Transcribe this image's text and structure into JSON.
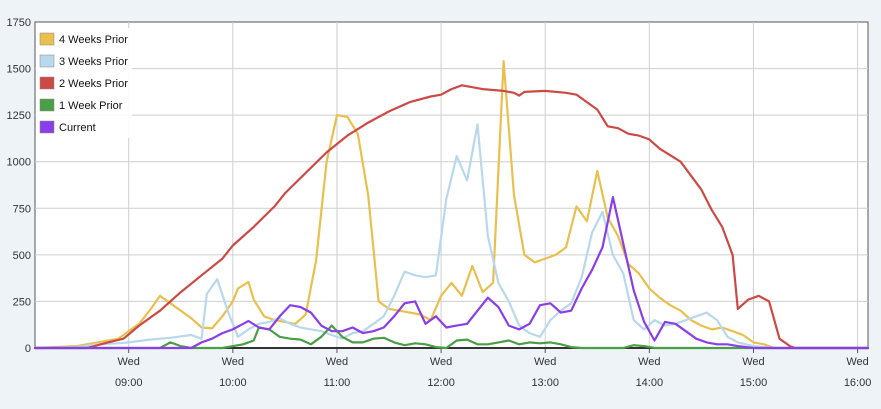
{
  "chart_data": {
    "type": "line",
    "title": "",
    "xlabel": "",
    "ylabel": "",
    "ylim": [
      0,
      1750
    ],
    "y_ticks": [
      0,
      250,
      500,
      750,
      1000,
      1250,
      1500,
      1750
    ],
    "x_ticks": [
      {
        "day": "Wed",
        "time": "09:00",
        "t": 9
      },
      {
        "day": "Wed",
        "time": "10:00",
        "t": 10
      },
      {
        "day": "Wed",
        "time": "11:00",
        "t": 11
      },
      {
        "day": "Wed",
        "time": "12:00",
        "t": 12
      },
      {
        "day": "Wed",
        "time": "13:00",
        "t": 13
      },
      {
        "day": "Wed",
        "time": "14:00",
        "t": 14
      },
      {
        "day": "Wed",
        "time": "15:00",
        "t": 15
      },
      {
        "day": "Wed",
        "time": "16:00",
        "t": 16
      }
    ],
    "xlim_hours": [
      8.1,
      16.1
    ],
    "grid": true,
    "legend_position": "top-left",
    "series": [
      {
        "name": "4 Weeks Prior",
        "color": "#e9c04e",
        "points": [
          [
            8.1,
            0
          ],
          [
            8.5,
            10
          ],
          [
            8.7,
            30
          ],
          [
            8.9,
            50
          ],
          [
            9.0,
            90
          ],
          [
            9.1,
            130
          ],
          [
            9.2,
            200
          ],
          [
            9.3,
            280
          ],
          [
            9.4,
            240
          ],
          [
            9.5,
            200
          ],
          [
            9.6,
            160
          ],
          [
            9.7,
            110
          ],
          [
            9.8,
            105
          ],
          [
            9.9,
            170
          ],
          [
            10.0,
            250
          ],
          [
            10.05,
            320
          ],
          [
            10.15,
            355
          ],
          [
            10.2,
            260
          ],
          [
            10.3,
            170
          ],
          [
            10.4,
            150
          ],
          [
            10.5,
            140
          ],
          [
            10.6,
            130
          ],
          [
            10.7,
            180
          ],
          [
            10.8,
            470
          ],
          [
            10.9,
            1000
          ],
          [
            11.0,
            1250
          ],
          [
            11.1,
            1240
          ],
          [
            11.2,
            1150
          ],
          [
            11.3,
            820
          ],
          [
            11.4,
            250
          ],
          [
            11.5,
            210
          ],
          [
            11.6,
            200
          ],
          [
            11.7,
            190
          ],
          [
            11.8,
            180
          ],
          [
            11.9,
            150
          ],
          [
            12.0,
            280
          ],
          [
            12.1,
            350
          ],
          [
            12.2,
            280
          ],
          [
            12.3,
            440
          ],
          [
            12.4,
            300
          ],
          [
            12.5,
            350
          ],
          [
            12.6,
            1540
          ],
          [
            12.7,
            820
          ],
          [
            12.8,
            500
          ],
          [
            12.9,
            460
          ],
          [
            13.0,
            480
          ],
          [
            13.1,
            500
          ],
          [
            13.2,
            540
          ],
          [
            13.3,
            760
          ],
          [
            13.4,
            680
          ],
          [
            13.5,
            950
          ],
          [
            13.6,
            700
          ],
          [
            13.7,
            600
          ],
          [
            13.8,
            450
          ],
          [
            13.9,
            400
          ],
          [
            14.0,
            320
          ],
          [
            14.1,
            270
          ],
          [
            14.2,
            230
          ],
          [
            14.3,
            200
          ],
          [
            14.4,
            150
          ],
          [
            14.5,
            120
          ],
          [
            14.6,
            100
          ],
          [
            14.7,
            110
          ],
          [
            14.8,
            90
          ],
          [
            14.9,
            70
          ],
          [
            15.0,
            30
          ],
          [
            15.1,
            20
          ],
          [
            15.2,
            0
          ],
          [
            16.1,
            0
          ]
        ]
      },
      {
        "name": "3 Weeks Prior",
        "color": "#b8d8ee",
        "points": [
          [
            8.1,
            0
          ],
          [
            8.5,
            5
          ],
          [
            8.7,
            20
          ],
          [
            8.9,
            25
          ],
          [
            9.0,
            30
          ],
          [
            9.2,
            45
          ],
          [
            9.4,
            55
          ],
          [
            9.6,
            70
          ],
          [
            9.7,
            50
          ],
          [
            9.75,
            290
          ],
          [
            9.85,
            370
          ],
          [
            9.95,
            200
          ],
          [
            10.05,
            60
          ],
          [
            10.15,
            100
          ],
          [
            10.25,
            130
          ],
          [
            10.35,
            140
          ],
          [
            10.45,
            160
          ],
          [
            10.55,
            130
          ],
          [
            10.65,
            110
          ],
          [
            10.75,
            100
          ],
          [
            10.85,
            90
          ],
          [
            10.95,
            70
          ],
          [
            11.05,
            50
          ],
          [
            11.15,
            80
          ],
          [
            11.25,
            90
          ],
          [
            11.35,
            130
          ],
          [
            11.45,
            170
          ],
          [
            11.55,
            280
          ],
          [
            11.65,
            410
          ],
          [
            11.75,
            390
          ],
          [
            11.85,
            380
          ],
          [
            11.95,
            390
          ],
          [
            12.05,
            800
          ],
          [
            12.15,
            1030
          ],
          [
            12.25,
            900
          ],
          [
            12.35,
            1200
          ],
          [
            12.45,
            600
          ],
          [
            12.55,
            350
          ],
          [
            12.65,
            250
          ],
          [
            12.75,
            120
          ],
          [
            12.85,
            80
          ],
          [
            12.95,
            60
          ],
          [
            13.05,
            150
          ],
          [
            13.15,
            200
          ],
          [
            13.25,
            240
          ],
          [
            13.35,
            380
          ],
          [
            13.45,
            620
          ],
          [
            13.55,
            730
          ],
          [
            13.65,
            500
          ],
          [
            13.75,
            400
          ],
          [
            13.85,
            150
          ],
          [
            13.95,
            100
          ],
          [
            14.05,
            150
          ],
          [
            14.15,
            120
          ],
          [
            14.25,
            130
          ],
          [
            14.35,
            150
          ],
          [
            14.45,
            170
          ],
          [
            14.55,
            190
          ],
          [
            14.65,
            150
          ],
          [
            14.75,
            60
          ],
          [
            14.85,
            30
          ],
          [
            15.0,
            10
          ],
          [
            15.2,
            0
          ],
          [
            16.1,
            0
          ]
        ]
      },
      {
        "name": "2 Weeks Prior",
        "color": "#cc4a45",
        "points": [
          [
            8.1,
            0
          ],
          [
            8.6,
            0
          ],
          [
            8.8,
            30
          ],
          [
            8.95,
            50
          ],
          [
            9.1,
            120
          ],
          [
            9.3,
            200
          ],
          [
            9.5,
            300
          ],
          [
            9.7,
            390
          ],
          [
            9.9,
            480
          ],
          [
            10.0,
            550
          ],
          [
            10.2,
            650
          ],
          [
            10.4,
            760
          ],
          [
            10.5,
            830
          ],
          [
            10.7,
            940
          ],
          [
            10.9,
            1050
          ],
          [
            11.1,
            1140
          ],
          [
            11.3,
            1210
          ],
          [
            11.5,
            1270
          ],
          [
            11.7,
            1320
          ],
          [
            11.9,
            1350
          ],
          [
            12.0,
            1360
          ],
          [
            12.1,
            1390
          ],
          [
            12.2,
            1410
          ],
          [
            12.4,
            1390
          ],
          [
            12.6,
            1380
          ],
          [
            12.7,
            1370
          ],
          [
            12.75,
            1355
          ],
          [
            12.8,
            1375
          ],
          [
            13.0,
            1380
          ],
          [
            13.2,
            1370
          ],
          [
            13.3,
            1360
          ],
          [
            13.4,
            1320
          ],
          [
            13.5,
            1280
          ],
          [
            13.6,
            1190
          ],
          [
            13.7,
            1180
          ],
          [
            13.8,
            1150
          ],
          [
            13.9,
            1140
          ],
          [
            14.0,
            1120
          ],
          [
            14.1,
            1070
          ],
          [
            14.3,
            1000
          ],
          [
            14.5,
            850
          ],
          [
            14.6,
            740
          ],
          [
            14.7,
            650
          ],
          [
            14.8,
            500
          ],
          [
            14.85,
            210
          ],
          [
            14.95,
            260
          ],
          [
            15.05,
            280
          ],
          [
            15.15,
            250
          ],
          [
            15.25,
            50
          ],
          [
            15.35,
            10
          ],
          [
            15.4,
            0
          ],
          [
            16.1,
            0
          ]
        ]
      },
      {
        "name": "1 Week Prior",
        "color": "#4a9e45",
        "points": [
          [
            8.1,
            0
          ],
          [
            9.3,
            0
          ],
          [
            9.4,
            30
          ],
          [
            9.5,
            10
          ],
          [
            9.6,
            0
          ],
          [
            9.9,
            0
          ],
          [
            10.1,
            20
          ],
          [
            10.2,
            40
          ],
          [
            10.25,
            110
          ],
          [
            10.35,
            100
          ],
          [
            10.45,
            60
          ],
          [
            10.55,
            50
          ],
          [
            10.65,
            45
          ],
          [
            10.75,
            20
          ],
          [
            10.85,
            60
          ],
          [
            10.95,
            120
          ],
          [
            11.05,
            60
          ],
          [
            11.15,
            30
          ],
          [
            11.25,
            30
          ],
          [
            11.35,
            50
          ],
          [
            11.45,
            55
          ],
          [
            11.55,
            30
          ],
          [
            11.65,
            15
          ],
          [
            11.75,
            25
          ],
          [
            11.85,
            20
          ],
          [
            11.95,
            5
          ],
          [
            12.05,
            0
          ],
          [
            12.15,
            40
          ],
          [
            12.25,
            45
          ],
          [
            12.35,
            20
          ],
          [
            12.45,
            20
          ],
          [
            12.55,
            30
          ],
          [
            12.65,
            40
          ],
          [
            12.75,
            20
          ],
          [
            12.85,
            30
          ],
          [
            12.95,
            25
          ],
          [
            13.05,
            30
          ],
          [
            13.15,
            20
          ],
          [
            13.25,
            5
          ],
          [
            13.35,
            0
          ],
          [
            13.75,
            0
          ],
          [
            13.85,
            15
          ],
          [
            13.95,
            10
          ],
          [
            14.05,
            0
          ],
          [
            16.1,
            0
          ]
        ]
      },
      {
        "name": "Current",
        "color": "#8a3ee8",
        "points": [
          [
            8.1,
            0
          ],
          [
            9.6,
            0
          ],
          [
            9.7,
            30
          ],
          [
            9.8,
            50
          ],
          [
            9.9,
            80
          ],
          [
            10.0,
            100
          ],
          [
            10.1,
            130
          ],
          [
            10.15,
            145
          ],
          [
            10.25,
            110
          ],
          [
            10.35,
            100
          ],
          [
            10.45,
            170
          ],
          [
            10.55,
            230
          ],
          [
            10.65,
            220
          ],
          [
            10.75,
            190
          ],
          [
            10.85,
            120
          ],
          [
            10.95,
            90
          ],
          [
            11.05,
            90
          ],
          [
            11.15,
            110
          ],
          [
            11.25,
            80
          ],
          [
            11.35,
            90
          ],
          [
            11.45,
            110
          ],
          [
            11.55,
            170
          ],
          [
            11.65,
            240
          ],
          [
            11.75,
            250
          ],
          [
            11.85,
            130
          ],
          [
            11.95,
            170
          ],
          [
            12.05,
            110
          ],
          [
            12.15,
            120
          ],
          [
            12.25,
            130
          ],
          [
            12.35,
            200
          ],
          [
            12.45,
            270
          ],
          [
            12.55,
            220
          ],
          [
            12.65,
            120
          ],
          [
            12.75,
            100
          ],
          [
            12.85,
            130
          ],
          [
            12.95,
            230
          ],
          [
            13.05,
            240
          ],
          [
            13.15,
            190
          ],
          [
            13.25,
            200
          ],
          [
            13.35,
            320
          ],
          [
            13.45,
            420
          ],
          [
            13.55,
            540
          ],
          [
            13.65,
            810
          ],
          [
            13.75,
            560
          ],
          [
            13.85,
            310
          ],
          [
            13.95,
            140
          ],
          [
            14.05,
            40
          ],
          [
            14.15,
            140
          ],
          [
            14.25,
            130
          ],
          [
            14.35,
            90
          ],
          [
            14.45,
            50
          ],
          [
            14.55,
            30
          ],
          [
            14.65,
            20
          ],
          [
            14.75,
            20
          ],
          [
            14.85,
            10
          ],
          [
            15.0,
            0
          ],
          [
            16.1,
            0
          ]
        ]
      }
    ]
  }
}
